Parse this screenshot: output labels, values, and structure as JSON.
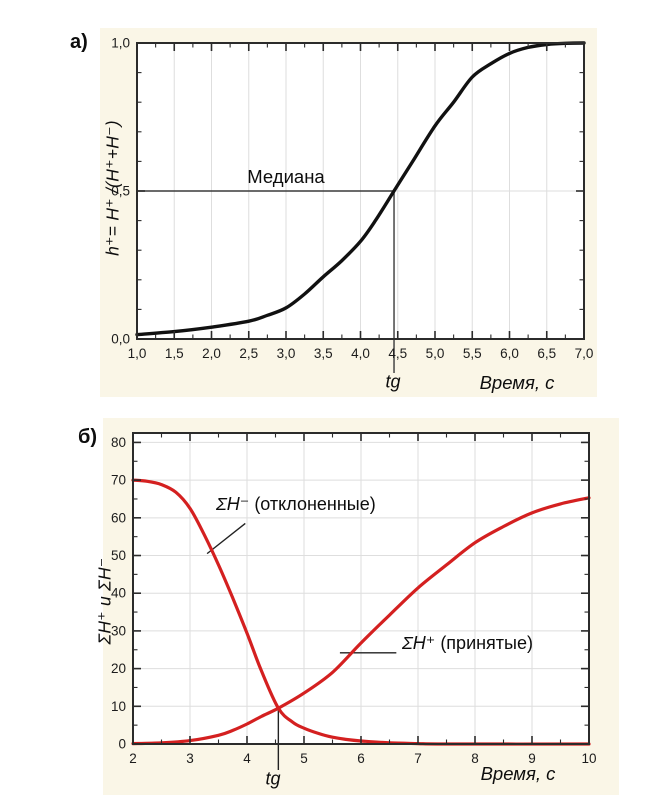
{
  "figure": {
    "background": "#ffffff",
    "panel_background": "#faf6e7",
    "plot_background": "#ffffff",
    "axis_color": "#2b2b2b",
    "grid_color": "#dedede",
    "accent_red": "#d42020",
    "curve_black": "#111111"
  },
  "chart_data": [
    {
      "id": "a",
      "type": "line",
      "panel_label": "а)",
      "xlabel": "Время, с",
      "ylabel": "h⁺= H⁺ /(H⁺+H⁻)",
      "xlim": [
        1,
        7
      ],
      "ylim": [
        0,
        1
      ],
      "grid": {
        "vertical": [
          1.5,
          2,
          2.5,
          3,
          3.5,
          4,
          4.5,
          5,
          5.5,
          6,
          6.5
        ],
        "horizontal": [
          0.5
        ]
      },
      "xticks": {
        "values": [
          1,
          1.5,
          2,
          2.5,
          3,
          3.5,
          4,
          4.5,
          5,
          5.5,
          6,
          6.5,
          7
        ],
        "labels": [
          "1,0",
          "1,5",
          "2,0",
          "2,5",
          "3,0",
          "3,5",
          "4,0",
          "4,5",
          "5,0",
          "5,5",
          "6,0",
          "6,5",
          "7,0"
        ],
        "minor_step": 0.25
      },
      "yticks": {
        "values": [
          0,
          0.5,
          1
        ],
        "labels": [
          "0,0",
          "0,5",
          "1,0"
        ],
        "minor_step": 0.1
      },
      "series": [
        {
          "name": "share-accepted-sigmoid",
          "color": "#111111",
          "width": 3.4,
          "points": [
            [
              1,
              0.015
            ],
            [
              1.5,
              0.025
            ],
            [
              2,
              0.04
            ],
            [
              2.5,
              0.06
            ],
            [
              2.75,
              0.08
            ],
            [
              3,
              0.105
            ],
            [
              3.25,
              0.152
            ],
            [
              3.5,
              0.21
            ],
            [
              3.75,
              0.265
            ],
            [
              4,
              0.33
            ],
            [
              4.2,
              0.4
            ],
            [
              4.45,
              0.5
            ],
            [
              4.7,
              0.6
            ],
            [
              5,
              0.72
            ],
            [
              5.25,
              0.8
            ],
            [
              5.5,
              0.885
            ],
            [
              5.75,
              0.93
            ],
            [
              6,
              0.965
            ],
            [
              6.25,
              0.985
            ],
            [
              6.5,
              0.995
            ],
            [
              6.75,
              0.999
            ],
            [
              7,
              1
            ]
          ]
        }
      ],
      "annotations": {
        "median": {
          "label": "Медиана",
          "x": 4.45,
          "y": 0.5
        },
        "tg": {
          "label": "tg",
          "x": 4.45
        }
      }
    },
    {
      "id": "b",
      "type": "line",
      "panel_label": "б)",
      "xlabel": "Время, с",
      "ylabel": "ΣH⁺ и ΣH⁻",
      "xlim": [
        2,
        10
      ],
      "ylim": [
        0,
        82.5
      ],
      "grid": {
        "vertical": [
          3,
          4,
          5,
          6,
          7,
          8,
          9
        ],
        "horizontal": [
          10,
          20,
          30,
          40,
          50,
          60,
          70,
          80
        ]
      },
      "xticks": {
        "values": [
          2,
          3,
          4,
          5,
          6,
          7,
          8,
          9,
          10
        ],
        "labels": [
          "2",
          "3",
          "4",
          "5",
          "6",
          "7",
          "8",
          "9",
          "10"
        ],
        "minor_step": 0.5
      },
      "yticks": {
        "values": [
          0,
          10,
          20,
          30,
          40,
          50,
          60,
          70,
          80
        ],
        "labels": [
          "0",
          "10",
          "20",
          "30",
          "40",
          "50",
          "60",
          "70",
          "80"
        ],
        "minor_step": 5
      },
      "series": [
        {
          "name": "sum-h-minus-rejected",
          "color": "#d42020",
          "width": 3.2,
          "points": [
            [
              2,
              70
            ],
            [
              2.25,
              69.7
            ],
            [
              2.5,
              68.8
            ],
            [
              2.75,
              66.8
            ],
            [
              3,
              62.5
            ],
            [
              3.25,
              55.5
            ],
            [
              3.5,
              47.5
            ],
            [
              3.75,
              38.7
            ],
            [
              4,
              29.4
            ],
            [
              4.25,
              19.5
            ],
            [
              4.55,
              9.5
            ],
            [
              4.8,
              5.8
            ],
            [
              5,
              4.2
            ],
            [
              5.25,
              2.8
            ],
            [
              5.5,
              1.8
            ],
            [
              5.75,
              1.2
            ],
            [
              6,
              0.8
            ],
            [
              6.5,
              0.3
            ],
            [
              7,
              0.1
            ],
            [
              7.5,
              0
            ],
            [
              10,
              0
            ]
          ]
        },
        {
          "name": "sum-h-plus-accepted",
          "color": "#d42020",
          "width": 3.2,
          "points": [
            [
              2,
              0.1
            ],
            [
              2.5,
              0.3
            ],
            [
              3,
              0.9
            ],
            [
              3.5,
              2.3
            ],
            [
              3.75,
              3.6
            ],
            [
              4,
              5.3
            ],
            [
              4.25,
              7.3
            ],
            [
              4.55,
              9.5
            ],
            [
              5,
              13.5
            ],
            [
              5.5,
              19
            ],
            [
              6,
              26.8
            ],
            [
              6.5,
              34.2
            ],
            [
              7,
              41.4
            ],
            [
              7.5,
              47.5
            ],
            [
              8,
              53.4
            ],
            [
              8.5,
              57.7
            ],
            [
              9,
              61.3
            ],
            [
              9.5,
              63.7
            ],
            [
              10,
              65.3
            ]
          ]
        }
      ],
      "annotations": {
        "series1_label": {
          "symbol": "ΣH⁻",
          "text": "(отклоненные)",
          "leader_from": [
            3.3,
            50.5
          ],
          "leader_to": [
            3.97,
            58.5
          ]
        },
        "series2_label": {
          "symbol": "ΣH⁺",
          "text": "(принятые)",
          "leader_from": [
            5.63,
            24.2
          ],
          "leader_to": [
            6.62,
            24.2
          ]
        },
        "tg": {
          "label": "tg",
          "x": 4.55,
          "y": 9.5
        }
      }
    }
  ]
}
